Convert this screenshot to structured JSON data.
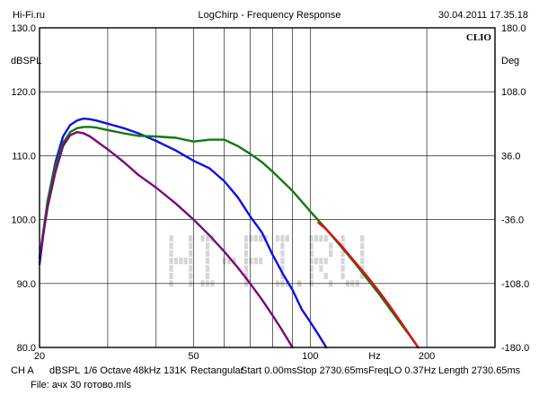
{
  "header": {
    "left": "Hi-Fi.ru",
    "center": "LogChirp - Frequency Response",
    "right": "30.04.2011 17.35.18"
  },
  "brand": "CLIO",
  "watermark": "HI-FI.RU",
  "footer": {
    "row1": [
      "CH A",
      "dBSPL",
      "1/6 Octave",
      "48kHz",
      "131K",
      "Rectangular",
      "Start 0.00ms",
      "Stop 2730.65ms",
      "FreqLO 0.37Hz",
      "Length 2730.65ms"
    ],
    "row2": "File: ачх 30 готово.mls"
  },
  "colors": {
    "blue": "#1010e0",
    "green": "#107a10",
    "purple": "#7a0a7a",
    "red": "#e01010",
    "grid": "#000000"
  },
  "chart_data": {
    "type": "line",
    "x_scale": "log",
    "xlim": [
      20,
      300
    ],
    "ylim": [
      80,
      130
    ],
    "ylabel": "dBSPL",
    "ylabel_right": "Deg",
    "xlabel": "Hz",
    "y_ticks": [
      "130.0",
      "120.0",
      "110.0",
      "100.0",
      "90.0",
      "80.0"
    ],
    "y_ticks_right": [
      "180.0",
      "108.0",
      "36.0",
      "-36.0",
      "-108.0",
      "-180.0"
    ],
    "x_ticks": [
      {
        "v": 20,
        "label": "20"
      },
      {
        "v": 50,
        "label": "50"
      },
      {
        "v": 100,
        "label": "100"
      },
      {
        "v": 200,
        "label": "200"
      }
    ],
    "grid": true,
    "series": [
      {
        "color": "blue",
        "x": [
          20,
          21,
          22,
          23,
          24,
          25,
          26,
          27,
          28,
          30,
          33,
          36,
          40,
          45,
          50,
          55,
          60,
          65,
          70,
          75,
          80,
          85,
          90,
          95,
          100,
          105,
          110
        ],
        "y": [
          93,
          103,
          109,
          113,
          114.8,
          115.5,
          115.8,
          115.7,
          115.5,
          115,
          114.3,
          113.5,
          112.3,
          110.8,
          109.2,
          108,
          106,
          103.5,
          100.5,
          98,
          94.5,
          91.5,
          89,
          86,
          84,
          82,
          80
        ]
      },
      {
        "color": "green",
        "x": [
          20,
          21,
          22,
          23,
          24,
          25,
          26,
          27,
          28,
          30,
          33,
          36,
          40,
          45,
          50,
          55,
          60,
          65,
          70,
          75,
          80,
          90,
          100,
          110,
          120,
          130,
          140,
          150,
          160,
          170,
          180,
          190
        ],
        "y": [
          94,
          103,
          108.5,
          112,
          113.7,
          114.3,
          114.5,
          114.5,
          114.4,
          114,
          113.5,
          113.1,
          113,
          112.8,
          112.2,
          112.5,
          112.5,
          111.5,
          110.3,
          109,
          107.5,
          104.5,
          101.3,
          98.5,
          95.8,
          93.3,
          90.8,
          88.5,
          86.2,
          84,
          82,
          80
        ]
      },
      {
        "color": "purple",
        "x": [
          20,
          21,
          22,
          23,
          24,
          25,
          26,
          27,
          28,
          30,
          33,
          36,
          40,
          45,
          50,
          55,
          60,
          65,
          70,
          75,
          80,
          85,
          90
        ],
        "y": [
          94,
          102,
          107.5,
          111.5,
          113.2,
          113.7,
          113.5,
          113,
          112.3,
          111,
          109,
          107,
          105,
          102.5,
          100,
          97.5,
          95,
          92.5,
          90,
          87.5,
          85,
          82.5,
          80
        ]
      },
      {
        "color": "red",
        "x": [
          105,
          110,
          120,
          130,
          140,
          150,
          160,
          170,
          180,
          190
        ],
        "y": [
          99.5,
          98.5,
          96,
          93.5,
          91.2,
          88.9,
          86.6,
          84.3,
          82.1,
          80
        ]
      }
    ]
  }
}
